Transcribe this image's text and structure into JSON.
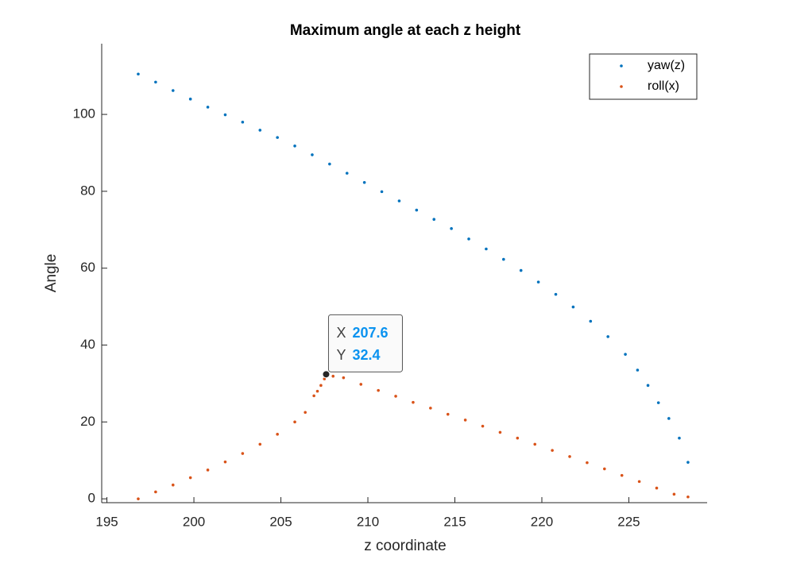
{
  "chart_data": {
    "type": "scatter",
    "title": "Maximum angle at each z height",
    "x_label": "z coordinate",
    "y_label": "Angle",
    "xlim": [
      194.7,
      229.5
    ],
    "ylim": [
      -1,
      118.4
    ],
    "xticks": [
      195,
      200,
      205,
      210,
      215,
      220,
      225
    ],
    "yticks": [
      0,
      20,
      40,
      60,
      80,
      100
    ],
    "legend": "upper right",
    "series": [
      {
        "name": "yaw(z)",
        "color": "#0072BD",
        "x": [
          196.8,
          197.8,
          198.8,
          199.8,
          200.8,
          201.8,
          202.8,
          203.8,
          204.8,
          205.8,
          206.8,
          207.8,
          208.8,
          209.8,
          210.8,
          211.8,
          212.8,
          213.8,
          214.8,
          215.8,
          216.8,
          217.8,
          218.8,
          219.8,
          220.8,
          221.8,
          222.8,
          223.8,
          224.8,
          225.5,
          226.1,
          226.7,
          227.3,
          227.9,
          228.4
        ],
        "values": [
          110.5,
          108.4,
          106.2,
          104.0,
          101.9,
          99.9,
          98.0,
          95.9,
          94.0,
          91.8,
          89.5,
          87.1,
          84.7,
          82.3,
          79.9,
          77.5,
          75.1,
          72.7,
          70.3,
          67.6,
          65.0,
          62.3,
          59.4,
          56.4,
          53.2,
          49.9,
          46.2,
          42.2,
          37.6,
          33.5,
          29.5,
          25.0,
          20.9,
          15.8,
          9.5
        ]
      },
      {
        "name": "roll(x)",
        "color": "#D95319",
        "x": [
          196.8,
          197.8,
          198.8,
          199.8,
          200.8,
          201.8,
          202.8,
          203.8,
          204.8,
          205.8,
          206.4,
          206.9,
          207.1,
          207.3,
          207.5,
          207.6,
          208.0,
          208.6,
          209.6,
          210.6,
          211.6,
          212.6,
          213.6,
          214.6,
          215.6,
          216.6,
          217.6,
          218.6,
          219.6,
          220.6,
          221.6,
          222.6,
          223.6,
          224.6,
          225.6,
          226.6,
          227.6,
          228.4
        ],
        "values": [
          0.0,
          1.8,
          3.6,
          5.5,
          7.5,
          9.6,
          11.8,
          14.2,
          16.8,
          20.0,
          22.5,
          26.8,
          28.0,
          29.5,
          31.2,
          32.4,
          31.9,
          31.5,
          29.8,
          28.2,
          26.7,
          25.1,
          23.6,
          22.0,
          20.5,
          18.9,
          17.3,
          15.8,
          14.2,
          12.6,
          11.0,
          9.4,
          7.8,
          6.1,
          4.5,
          2.8,
          1.2,
          0.5
        ]
      }
    ],
    "datatip": {
      "x_name": "X",
      "y_name": "Y",
      "x": 207.6,
      "y": 32.4
    }
  }
}
